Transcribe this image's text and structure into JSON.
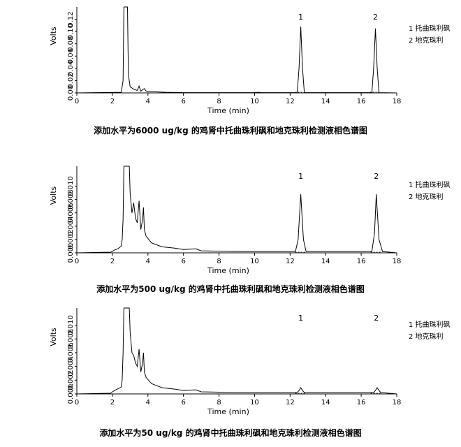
{
  "chart_data": [
    {
      "type": "line",
      "title": "添加水平为6000 ug/kg 的鸡肾中托曲珠利砜和地克珠利检测液相色谱图",
      "xlabel": "Time (min)",
      "ylabel": "Volts",
      "xlim": [
        0,
        18
      ],
      "xticks": [
        "0",
        "2",
        "4",
        "6",
        "8",
        "10",
        "12",
        "14",
        "16",
        "18"
      ],
      "yticks": [
        "0.00",
        "0.02",
        "0.04",
        "0.06",
        "0.08",
        "0.10",
        "0.12"
      ],
      "legend": [
        "1  托曲珠利砜",
        "2  地克珠利"
      ],
      "legend_placement": "right",
      "peak_labels": [
        {
          "label": "1",
          "x": 12.6
        },
        {
          "label": "2",
          "x": 16.8
        }
      ],
      "series": [
        {
          "points": [
            [
              0,
              0
            ],
            [
              2.5,
              0.001
            ],
            [
              2.6,
              0.02
            ],
            [
              2.65,
              0.14
            ],
            [
              2.85,
              0.14
            ],
            [
              2.9,
              0.03
            ],
            [
              3.0,
              0.01
            ],
            [
              3.2,
              0.006
            ],
            [
              3.4,
              0.004
            ],
            [
              3.5,
              0.011
            ],
            [
              3.6,
              0.003
            ],
            [
              3.7,
              0.005
            ],
            [
              3.8,
              0.007
            ],
            [
              3.9,
              0.003
            ],
            [
              4.2,
              0.002
            ],
            [
              5,
              0.001
            ],
            [
              6,
              0.0005
            ],
            [
              7,
              0.0005
            ],
            [
              10,
              0.0005
            ],
            [
              10.2,
              0.001
            ],
            [
              10.4,
              0.0005
            ],
            [
              12.4,
              0.0005
            ],
            [
              12.5,
              0.04
            ],
            [
              12.6,
              0.108
            ],
            [
              12.7,
              0.04
            ],
            [
              12.8,
              0.0005
            ],
            [
              16.6,
              0.0005
            ],
            [
              16.7,
              0.04
            ],
            [
              16.8,
              0.105
            ],
            [
              16.9,
              0.04
            ],
            [
              17.0,
              0.0005
            ],
            [
              18,
              0
            ]
          ]
        }
      ]
    },
    {
      "type": "line",
      "title": "添加水平为500 ug/kg 的鸡肾中托曲珠利砜和地克珠利检测液相色谱图",
      "xlabel": "Time (min)",
      "ylabel": "Volts",
      "xlim": [
        0,
        18
      ],
      "xticks": [
        "0",
        "2",
        "4",
        "6",
        "8",
        "10",
        "12",
        "14",
        "16",
        "18"
      ],
      "yticks": [
        "0.000",
        "0.002",
        "0.004",
        "0.006",
        "0.008",
        "0.010"
      ],
      "legend": [
        "1  托曲珠利砜",
        "2  地克珠利"
      ],
      "legend_placement": "right",
      "peak_labels": [
        {
          "label": "1",
          "x": 12.6
        },
        {
          "label": "2",
          "x": 16.85
        }
      ],
      "series": [
        {
          "points": [
            [
              0,
              0
            ],
            [
              1.9,
              0.0001
            ],
            [
              2.0,
              0.0002
            ],
            [
              2.1,
              0.0004
            ],
            [
              2.3,
              0.0006
            ],
            [
              2.5,
              0.001
            ],
            [
              2.55,
              0.002
            ],
            [
              2.6,
              0.005
            ],
            [
              2.65,
              0.013
            ],
            [
              2.95,
              0.013
            ],
            [
              3.0,
              0.009
            ],
            [
              3.1,
              0.006
            ],
            [
              3.2,
              0.0075
            ],
            [
              3.3,
              0.0052
            ],
            [
              3.4,
              0.0045
            ],
            [
              3.5,
              0.0078
            ],
            [
              3.6,
              0.0035
            ],
            [
              3.7,
              0.005
            ],
            [
              3.75,
              0.0068
            ],
            [
              3.8,
              0.0035
            ],
            [
              3.9,
              0.0025
            ],
            [
              4.2,
              0.0015
            ],
            [
              4.5,
              0.0012
            ],
            [
              4.8,
              0.0009
            ],
            [
              5.5,
              0.0007
            ],
            [
              6,
              0.0005
            ],
            [
              6.7,
              0.0006
            ],
            [
              7,
              0.0003
            ],
            [
              9,
              0.0002
            ],
            [
              12.3,
              0.0002
            ],
            [
              12.45,
              0.002
            ],
            [
              12.6,
              0.0088
            ],
            [
              12.75,
              0.002
            ],
            [
              12.9,
              0.0002
            ],
            [
              16.6,
              0.0002
            ],
            [
              16.75,
              0.003
            ],
            [
              16.85,
              0.0088
            ],
            [
              17.0,
              0.002
            ],
            [
              17.2,
              0.0002
            ],
            [
              18,
              0
            ]
          ]
        }
      ]
    },
    {
      "type": "line",
      "title": "添加水平为50 ug/kg 的鸡肾中托曲珠利砜和地克珠利检测液相色谱图",
      "xlabel": "Time (min)",
      "ylabel": "Volts",
      "xlim": [
        0,
        18
      ],
      "xticks": [
        "0",
        "2",
        "4",
        "6",
        "8",
        "10",
        "12",
        "14",
        "16",
        "18"
      ],
      "yticks": [
        "0.000",
        "0.002",
        "0.004",
        "0.006",
        "0.008",
        "0.010"
      ],
      "legend": [
        "1  托曲珠利砜",
        "2  地克珠利"
      ],
      "legend_placement": "right",
      "peak_labels": [
        {
          "label": "1",
          "x": 12.6
        },
        {
          "label": "2",
          "x": 16.85
        }
      ],
      "series": [
        {
          "points": [
            [
              0,
              0
            ],
            [
              1.9,
              0.0001
            ],
            [
              2.0,
              0.0003
            ],
            [
              2.2,
              0.0006
            ],
            [
              2.5,
              0.001
            ],
            [
              2.55,
              0.002
            ],
            [
              2.6,
              0.006
            ],
            [
              2.65,
              0.0125
            ],
            [
              2.95,
              0.0125
            ],
            [
              3.0,
              0.009
            ],
            [
              3.1,
              0.006
            ],
            [
              3.2,
              0.0056
            ],
            [
              3.3,
              0.0045
            ],
            [
              3.4,
              0.004
            ],
            [
              3.5,
              0.0065
            ],
            [
              3.6,
              0.0032
            ],
            [
              3.7,
              0.0045
            ],
            [
              3.75,
              0.006
            ],
            [
              3.8,
              0.0032
            ],
            [
              3.9,
              0.0024
            ],
            [
              4.2,
              0.0015
            ],
            [
              4.5,
              0.0012
            ],
            [
              4.8,
              0.0009
            ],
            [
              5.5,
              0.0007
            ],
            [
              6,
              0.0005
            ],
            [
              6.7,
              0.0006
            ],
            [
              7,
              0.0003
            ],
            [
              9,
              0.0002
            ],
            [
              12.4,
              0.0002
            ],
            [
              12.5,
              0.0005
            ],
            [
              12.6,
              0.0009
            ],
            [
              12.7,
              0.0005
            ],
            [
              12.8,
              0.0002
            ],
            [
              16.7,
              0.0002
            ],
            [
              16.8,
              0.0005
            ],
            [
              16.9,
              0.0009
            ],
            [
              17.0,
              0.0005
            ],
            [
              17.1,
              0.0002
            ],
            [
              18,
              0
            ]
          ]
        }
      ]
    }
  ]
}
